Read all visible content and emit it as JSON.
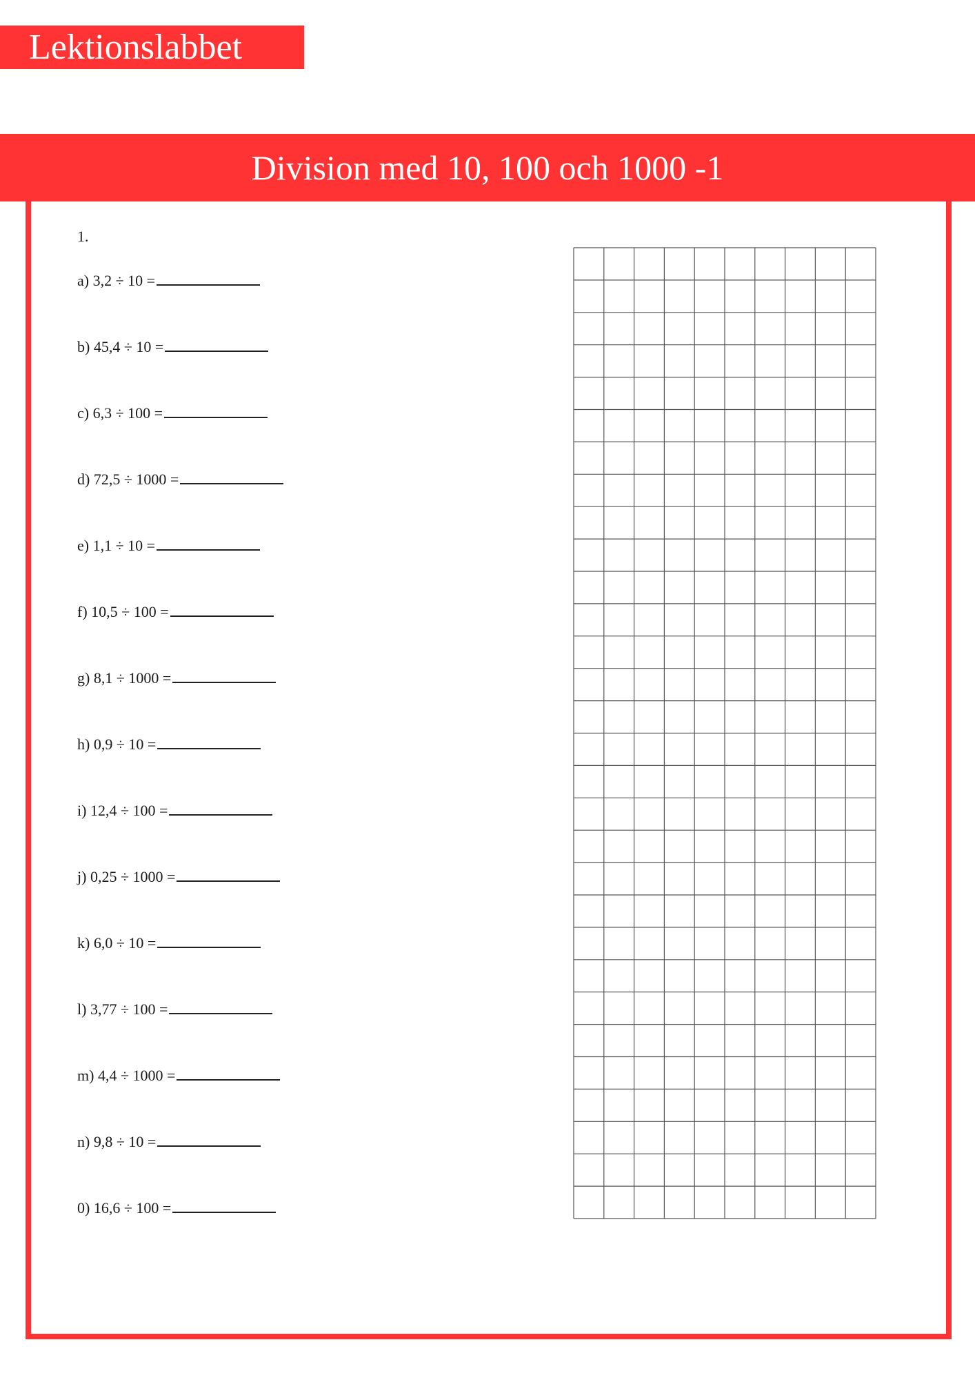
{
  "logo": {
    "text": "Lektionslabbet"
  },
  "title": "Division med 10, 100 och 1000 -1",
  "question_number": "1.",
  "items": [
    "a) 3,2 ÷ 10 =",
    "b) 45,4 ÷ 10 =",
    "c) 6,3 ÷ 100 =",
    "d) 72,5 ÷ 1000 =",
    "e) 1,1 ÷ 10 =",
    "f) 10,5 ÷ 100 =",
    "g) 8,1 ÷ 1000 =",
    "h) 0,9 ÷ 10 =",
    "i) 12,4 ÷ 100 =",
    "j) 0,25 ÷ 1000 =",
    "k) 6,0 ÷ 10 =",
    "l) 3,77 ÷ 100 =",
    "m) 4,4 ÷ 1000 =",
    "n) 9,8 ÷ 10 =",
    "0) 16,6 ÷ 100 ="
  ],
  "colors": {
    "accent": "#ff3333",
    "grid": "#555555"
  }
}
